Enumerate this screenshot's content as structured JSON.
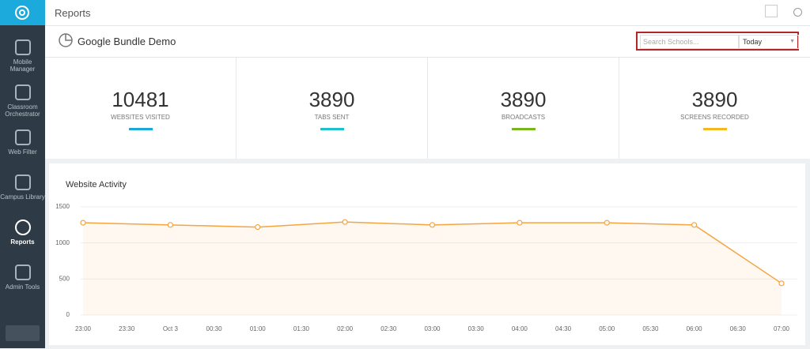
{
  "header": {
    "title": "Reports"
  },
  "sidebar": {
    "items": [
      "Mobile Manager",
      "Classroom Orchestrator",
      "Web Filter",
      "Campus Library",
      "Reports",
      "Admin Tools"
    ],
    "active": 4
  },
  "toolbar": {
    "title": "Google Bundle Demo",
    "search_placeholder": "Search Schools...",
    "range": "Today"
  },
  "stats": [
    {
      "value": 10481,
      "label": "WEBSITES VISITED",
      "color": "#1aa9d6"
    },
    {
      "value": 3890,
      "label": "TABS SENT",
      "color": "#1fbfcf"
    },
    {
      "value": 3890,
      "label": "BROADCASTS",
      "color": "#79b51c"
    },
    {
      "value": 3890,
      "label": "SCREENS RECORDED",
      "color": "#f4b71f"
    }
  ],
  "chart_data": {
    "type": "line",
    "title": "Website Activity",
    "xticks": [
      "23:00",
      "23:30",
      "Oct 3",
      "00:30",
      "01:00",
      "01:30",
      "02:00",
      "02:30",
      "03:00",
      "03:30",
      "04:00",
      "04:30",
      "05:00",
      "05:30",
      "06:00",
      "06:30",
      "07:00"
    ],
    "x": [
      "23:00",
      "Oct 3",
      "01:00",
      "02:00",
      "03:00",
      "04:00",
      "05:00",
      "06:00",
      "07:00"
    ],
    "series": [
      {
        "color": "#f5a540",
        "values": [
          1280,
          1250,
          1220,
          1290,
          1250,
          1280,
          1280,
          1250,
          440
        ]
      }
    ],
    "ylim": [
      0,
      1500
    ],
    "yticks": [
      0,
      500,
      1000,
      1500
    ],
    "grid": true
  }
}
